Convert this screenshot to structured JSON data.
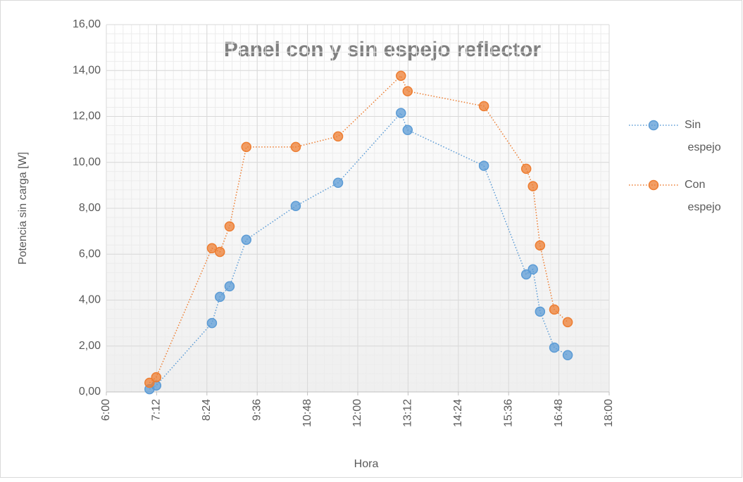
{
  "chart_data": {
    "type": "scatter",
    "title": "Panel con y sin espejo reflector",
    "xlabel": "Hora",
    "ylabel": "Potencia sin carga [W]",
    "series": [
      {
        "name": "Sin espejo",
        "color": "#5b9bd5",
        "x": [
          7.03,
          7.19,
          8.52,
          8.71,
          8.94,
          9.34,
          10.52,
          11.53,
          13.03,
          13.19,
          15.01,
          16.02,
          16.18,
          16.35,
          16.69,
          17.01
        ],
        "values": [
          0.12,
          0.28,
          3.0,
          4.14,
          4.6,
          6.63,
          8.1,
          9.11,
          12.15,
          11.41,
          9.85,
          5.12,
          5.34,
          3.5,
          1.93,
          1.6
        ]
      },
      {
        "name": "Con espejo",
        "color": "#ed7d31",
        "x": [
          7.03,
          7.19,
          8.52,
          8.71,
          8.94,
          9.34,
          10.52,
          11.53,
          13.03,
          13.19,
          15.01,
          16.02,
          16.18,
          16.35,
          16.69,
          17.01
        ],
        "values": [
          0.4,
          0.64,
          6.26,
          6.1,
          7.21,
          10.67,
          10.67,
          11.13,
          13.77,
          13.1,
          12.45,
          9.72,
          8.96,
          6.38,
          3.59,
          3.04
        ]
      }
    ],
    "xlim": [
      6,
      18
    ],
    "xticks": [
      {
        "value": 6,
        "label": "6:00"
      },
      {
        "value": 7.2,
        "label": "7:12"
      },
      {
        "value": 8.4,
        "label": "8:24"
      },
      {
        "value": 9.6,
        "label": "9:36"
      },
      {
        "value": 10.8,
        "label": "10:48"
      },
      {
        "value": 12,
        "label": "12:00"
      },
      {
        "value": 13.2,
        "label": "13:12"
      },
      {
        "value": 14.4,
        "label": "14:24"
      },
      {
        "value": 15.6,
        "label": "15:36"
      },
      {
        "value": 16.8,
        "label": "16:48"
      },
      {
        "value": 18,
        "label": "18:00"
      }
    ],
    "ylim": [
      0,
      16
    ],
    "yticks": [
      {
        "value": 0,
        "label": "0,00"
      },
      {
        "value": 2,
        "label": "2,00"
      },
      {
        "value": 4,
        "label": "4,00"
      },
      {
        "value": 6,
        "label": "6,00"
      },
      {
        "value": 8,
        "label": "8,00"
      },
      {
        "value": 10,
        "label": "10,00"
      },
      {
        "value": 12,
        "label": "12,00"
      },
      {
        "value": 14,
        "label": "14,00"
      },
      {
        "value": 16,
        "label": "16,00"
      }
    ],
    "grid": true,
    "legend": "right"
  }
}
